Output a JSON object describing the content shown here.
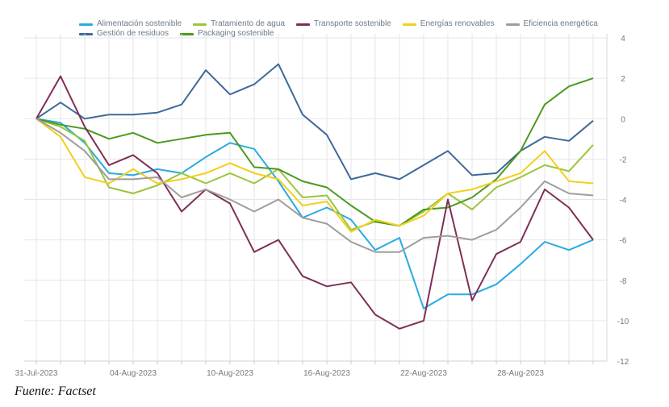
{
  "source_note": "Fuente: Factset",
  "chart_data": {
    "type": "line",
    "title": "",
    "xlabel": "",
    "ylabel": "",
    "ylim": [
      -12,
      4
    ],
    "yticks": [
      4,
      2,
      0,
      -2,
      -4,
      -6,
      -8,
      -10,
      -12
    ],
    "y_axis_position": "right",
    "grid": true,
    "legend_position": "top",
    "x_tick_labels": [
      "31-Jul-2023",
      "04-Aug-2023",
      "10-Aug-2023",
      "16-Aug-2023",
      "22-Aug-2023",
      "28-Aug-2023"
    ],
    "x_tick_indices": [
      0,
      4,
      8,
      12,
      16,
      20
    ],
    "x_count": 24,
    "series": [
      {
        "name": "Alimentación sostenible",
        "color": "#29abe2",
        "values": [
          0,
          -0.2,
          -1.2,
          -2.7,
          -2.8,
          -2.5,
          -2.7,
          -1.9,
          -1.2,
          -1.5,
          -3.1,
          -4.9,
          -4.4,
          -5.0,
          -6.5,
          -5.9,
          -9.4,
          -8.7,
          -8.7,
          -8.2,
          -7.2,
          -6.1,
          -6.5,
          -6.0
        ]
      },
      {
        "name": "Gestión de residuos",
        "color": "#3e6a99",
        "values": [
          0,
          0.8,
          0,
          0.2,
          0.2,
          0.3,
          0.7,
          2.4,
          1.2,
          1.7,
          2.7,
          0.2,
          -0.8,
          -3.0,
          -2.7,
          -3.0,
          -2.3,
          -1.6,
          -2.8,
          -2.7,
          -1.6,
          -0.9,
          -1.1,
          -0.1
        ]
      },
      {
        "name": "Tratamiento de agua",
        "color": "#9bc53d",
        "values": [
          0,
          -0.4,
          -1.1,
          -3.4,
          -3.7,
          -3.3,
          -2.7,
          -3.2,
          -2.7,
          -3.2,
          -2.5,
          -3.9,
          -3.8,
          -5.5,
          -5.1,
          -5.3,
          -4.6,
          -3.7,
          -4.5,
          -3.4,
          -2.9,
          -2.3,
          -2.6,
          -1.3
        ]
      },
      {
        "name": "Packaging sostenible",
        "color": "#4a9a1e",
        "values": [
          0,
          -0.3,
          -0.5,
          -1.0,
          -0.7,
          -1.2,
          -1.0,
          -0.8,
          -0.7,
          -2.4,
          -2.5,
          -3.1,
          -3.4,
          -4.3,
          -5.1,
          -5.3,
          -4.5,
          -4.4,
          -3.9,
          -3.0,
          -1.6,
          0.7,
          1.6,
          2.0
        ]
      },
      {
        "name": "Transporte sostenible",
        "color": "#7f2f57",
        "values": [
          0,
          2.1,
          -0.4,
          -2.3,
          -1.8,
          -2.7,
          -4.6,
          -3.5,
          -4.2,
          -6.6,
          -6.0,
          -7.8,
          -8.3,
          -8.1,
          -9.7,
          -10.4,
          -10.0,
          -4.0,
          -9.0,
          -6.7,
          -6.1,
          -3.5,
          -4.4,
          -6.0
        ]
      },
      {
        "name": "Energías renovables",
        "color": "#f2cf1d",
        "values": [
          0,
          -0.9,
          -2.9,
          -3.2,
          -2.5,
          -3.2,
          -3.0,
          -2.7,
          -2.2,
          -2.7,
          -3.0,
          -4.3,
          -4.1,
          -5.6,
          -5.0,
          -5.3,
          -4.8,
          -3.7,
          -3.5,
          -3.1,
          -2.7,
          -1.6,
          -3.1,
          -3.2
        ]
      },
      {
        "name": "Eficiencia energética",
        "color": "#9e9e9e",
        "values": [
          0,
          -0.7,
          -1.6,
          -3.0,
          -3.0,
          -2.9,
          -3.9,
          -3.5,
          -4.0,
          -4.6,
          -4.0,
          -4.9,
          -5.2,
          -6.1,
          -6.6,
          -6.6,
          -5.9,
          -5.8,
          -6.0,
          -5.5,
          -4.4,
          -3.1,
          -3.7,
          -3.8
        ]
      }
    ]
  }
}
